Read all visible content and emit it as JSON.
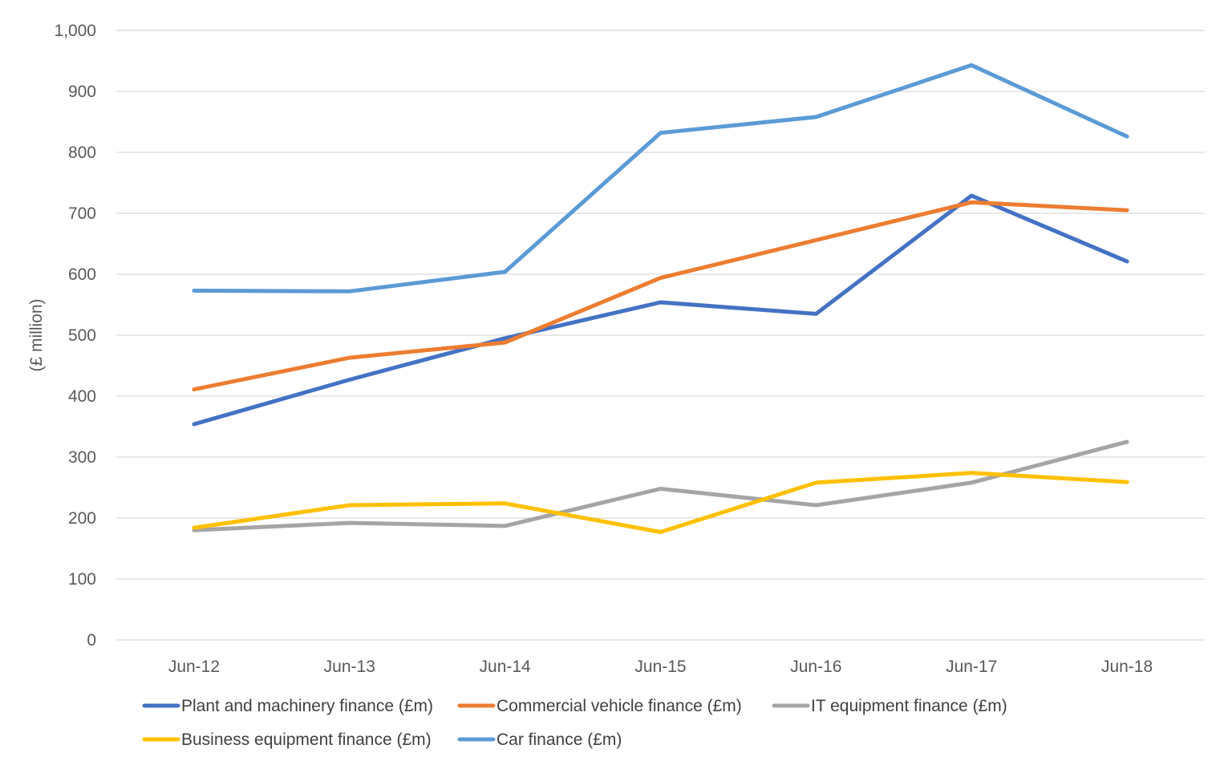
{
  "chart_data": {
    "type": "line",
    "title": "",
    "xlabel": "",
    "ylabel": "(£ million)",
    "categories": [
      "Jun-12",
      "Jun-13",
      "Jun-14",
      "Jun-15",
      "Jun-16",
      "Jun-17",
      "Jun-18"
    ],
    "ylim": [
      0,
      1000
    ],
    "yticks": [
      0,
      100,
      200,
      300,
      400,
      500,
      600,
      700,
      800,
      900,
      1000
    ],
    "ytick_labels": [
      "0",
      "100",
      "200",
      "300",
      "400",
      "500",
      "600",
      "700",
      "800",
      "900",
      "1,000"
    ],
    "grid": true,
    "legend_position": "bottom",
    "series": [
      {
        "name": "Plant and machinery finance (£m)",
        "color": "#4472C4",
        "values": [
          354,
          427,
          495,
          554,
          535,
          729,
          621
        ]
      },
      {
        "name": "Commercial vehicle finance (£m)",
        "color": "#ED7D31",
        "values": [
          411,
          463,
          488,
          594,
          656,
          718,
          705
        ]
      },
      {
        "name": "IT equipment finance (£m)",
        "color": "#A5A5A5",
        "values": [
          180,
          192,
          187,
          248,
          221,
          258,
          325
        ]
      },
      {
        "name": "Business equipment finance (£m)",
        "color": "#FFC000",
        "values": [
          184,
          221,
          224,
          177,
          258,
          274,
          259
        ]
      },
      {
        "name": "Car finance (£m)",
        "color": "#5B9BD5",
        "values": [
          573,
          572,
          604,
          832,
          858,
          943,
          826
        ]
      }
    ]
  }
}
